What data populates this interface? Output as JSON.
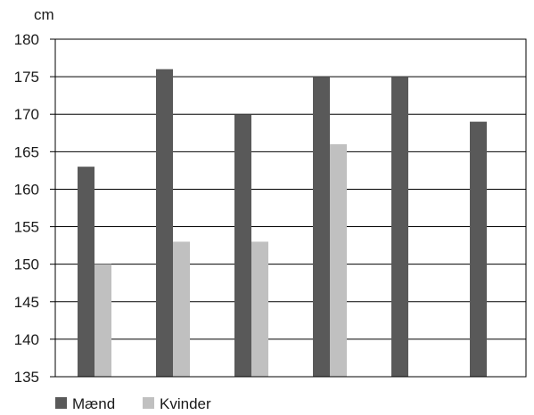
{
  "chart_data": {
    "type": "bar",
    "title": "",
    "xlabel": "",
    "ylabel": "cm",
    "ylim": [
      135,
      180
    ],
    "yticks": [
      135,
      140,
      145,
      150,
      155,
      160,
      165,
      170,
      175,
      180
    ],
    "categories": [
      "",
      "",
      "",
      "",
      "",
      ""
    ],
    "grid": true,
    "legend": "bottom-left",
    "series": [
      {
        "name": "Mænd",
        "color": "#595959",
        "values": [
          163,
          176,
          170,
          175,
          175,
          169
        ]
      },
      {
        "name": "Kvinder",
        "color": "#c0c0c0",
        "values": [
          150,
          153,
          153,
          166,
          null,
          null
        ]
      }
    ]
  }
}
